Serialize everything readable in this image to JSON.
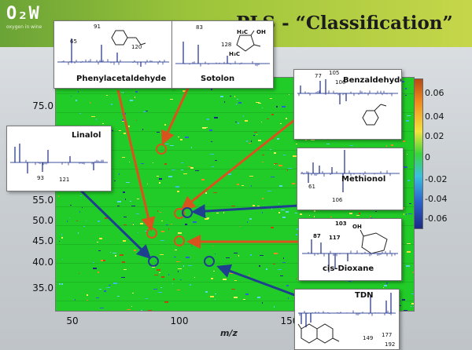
{
  "header": {
    "logo_text": "O₂W",
    "logo_subtitle": "oxygen in wine",
    "title": "PLS - “Classification”"
  },
  "plot": {
    "y_ticks": [
      "75.0",
      "55.0",
      "50.0",
      "45.0",
      "40.0",
      "35.0"
    ],
    "x_ticks": [
      "50",
      "100",
      "150"
    ],
    "x_axis_title": "m/z"
  },
  "colorbar": {
    "labels": [
      "0.06",
      "0.04",
      "0.02",
      "0",
      "-0.02",
      "-0.04",
      "-0.06"
    ],
    "top_color": "#b84a12",
    "mid_color": "#38d63a",
    "bottom_color": "#1b2b86"
  },
  "compounds": {
    "phenylacetaldehyde": {
      "name": "Phenylacetaldehyde",
      "peaks": [
        "91",
        "65",
        "120"
      ]
    },
    "sotolon": {
      "name": "Sotolon",
      "peaks": [
        "83",
        "128"
      ],
      "struct_labels": [
        "H₃C",
        "OH",
        "H₃C"
      ]
    },
    "benzaldehyde": {
      "name": "Benzaldehyde",
      "peaks": [
        "77",
        "105",
        "106"
      ]
    },
    "linalol": {
      "name": "Linalol",
      "peaks": [
        "93",
        "121"
      ]
    },
    "methionol": {
      "name": "Methionol",
      "peaks": [
        "61",
        "106"
      ]
    },
    "cis_dioxane": {
      "name": "cis-Dioxane",
      "peaks": [
        "103",
        "87",
        "117"
      ],
      "struct_labels": [
        "OH"
      ]
    },
    "tdn": {
      "name": "TDN",
      "peaks": [
        "149",
        "177",
        "192"
      ]
    }
  },
  "colors": {
    "arrow_orange": "#d9531e",
    "arrow_blue": "#1f3f8f",
    "plot_green": "#22cc28"
  }
}
